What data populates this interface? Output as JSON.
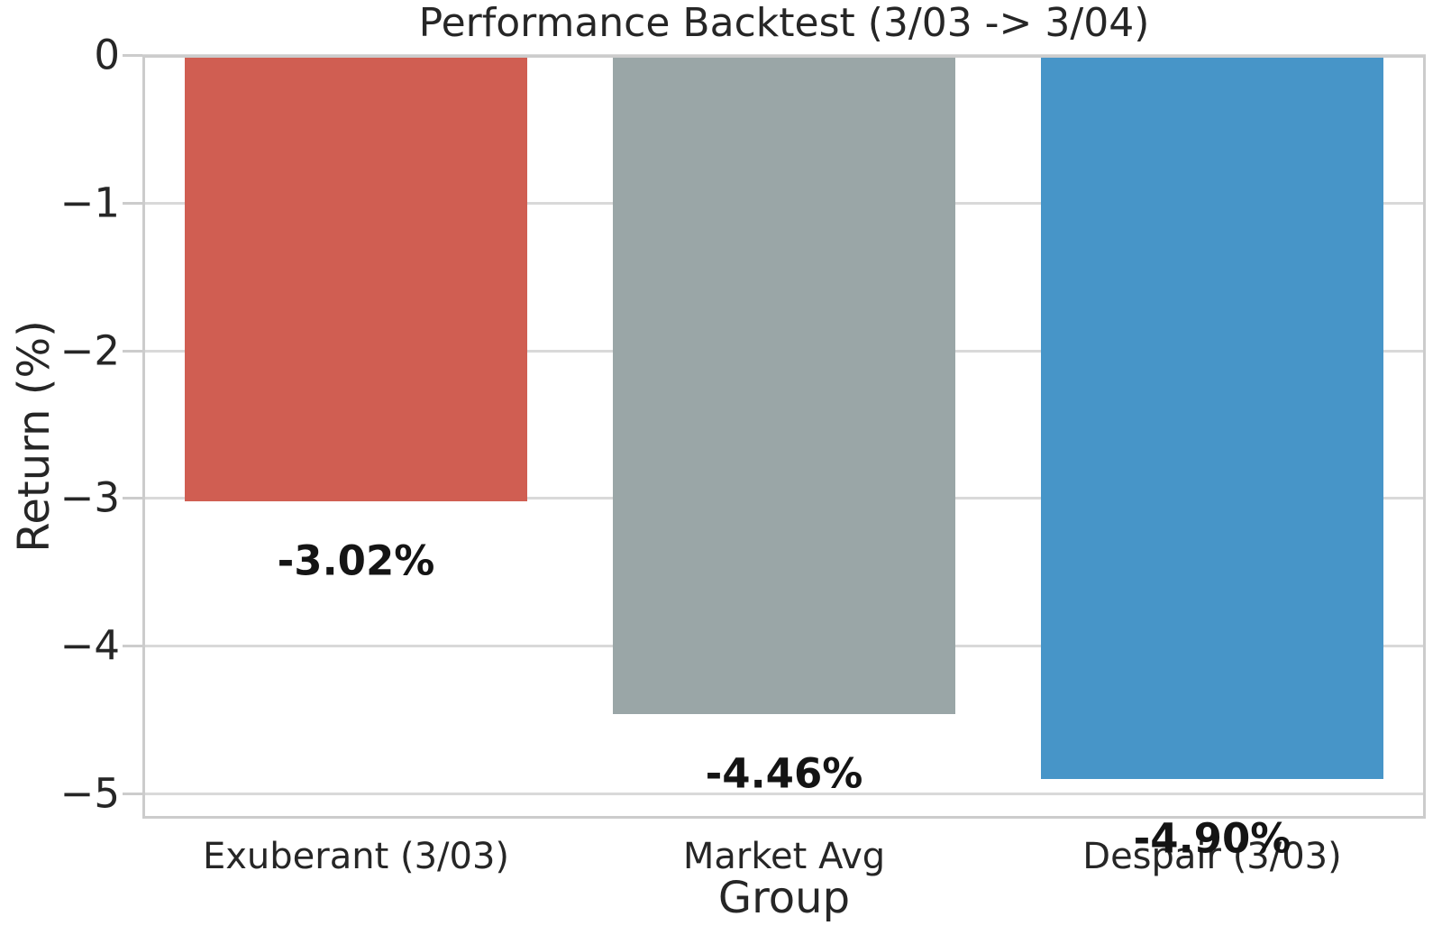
{
  "chart_data": {
    "type": "bar",
    "title": "Performance Backtest (3/03 -> 3/04)",
    "xlabel": "Group",
    "ylabel": "Return (%)",
    "categories": [
      "Exuberant (3/03)",
      "Market Avg",
      "Despair (3/03)"
    ],
    "series": [
      {
        "name": "Return",
        "values": [
          -3.02,
          -4.46,
          -4.9
        ]
      }
    ],
    "bar_value_labels": [
      "-3.02%",
      "-4.46%",
      "-4.90%"
    ],
    "bar_colors": [
      "#d05e52",
      "#9aa6a7",
      "#4795c8"
    ],
    "ylim": [
      -5.17,
      0
    ],
    "yticks": [
      0,
      -1,
      -2,
      -3,
      -4,
      -5
    ],
    "ytick_labels": [
      "0",
      "−1",
      "−2",
      "−3",
      "−4",
      "−5"
    ],
    "grid": true,
    "legend_position": "none",
    "colors": {
      "grid": "#d9d9d9",
      "spine": "#cccccc",
      "text": "#262626",
      "value_label": "#141414",
      "background": "#ffffff"
    }
  }
}
